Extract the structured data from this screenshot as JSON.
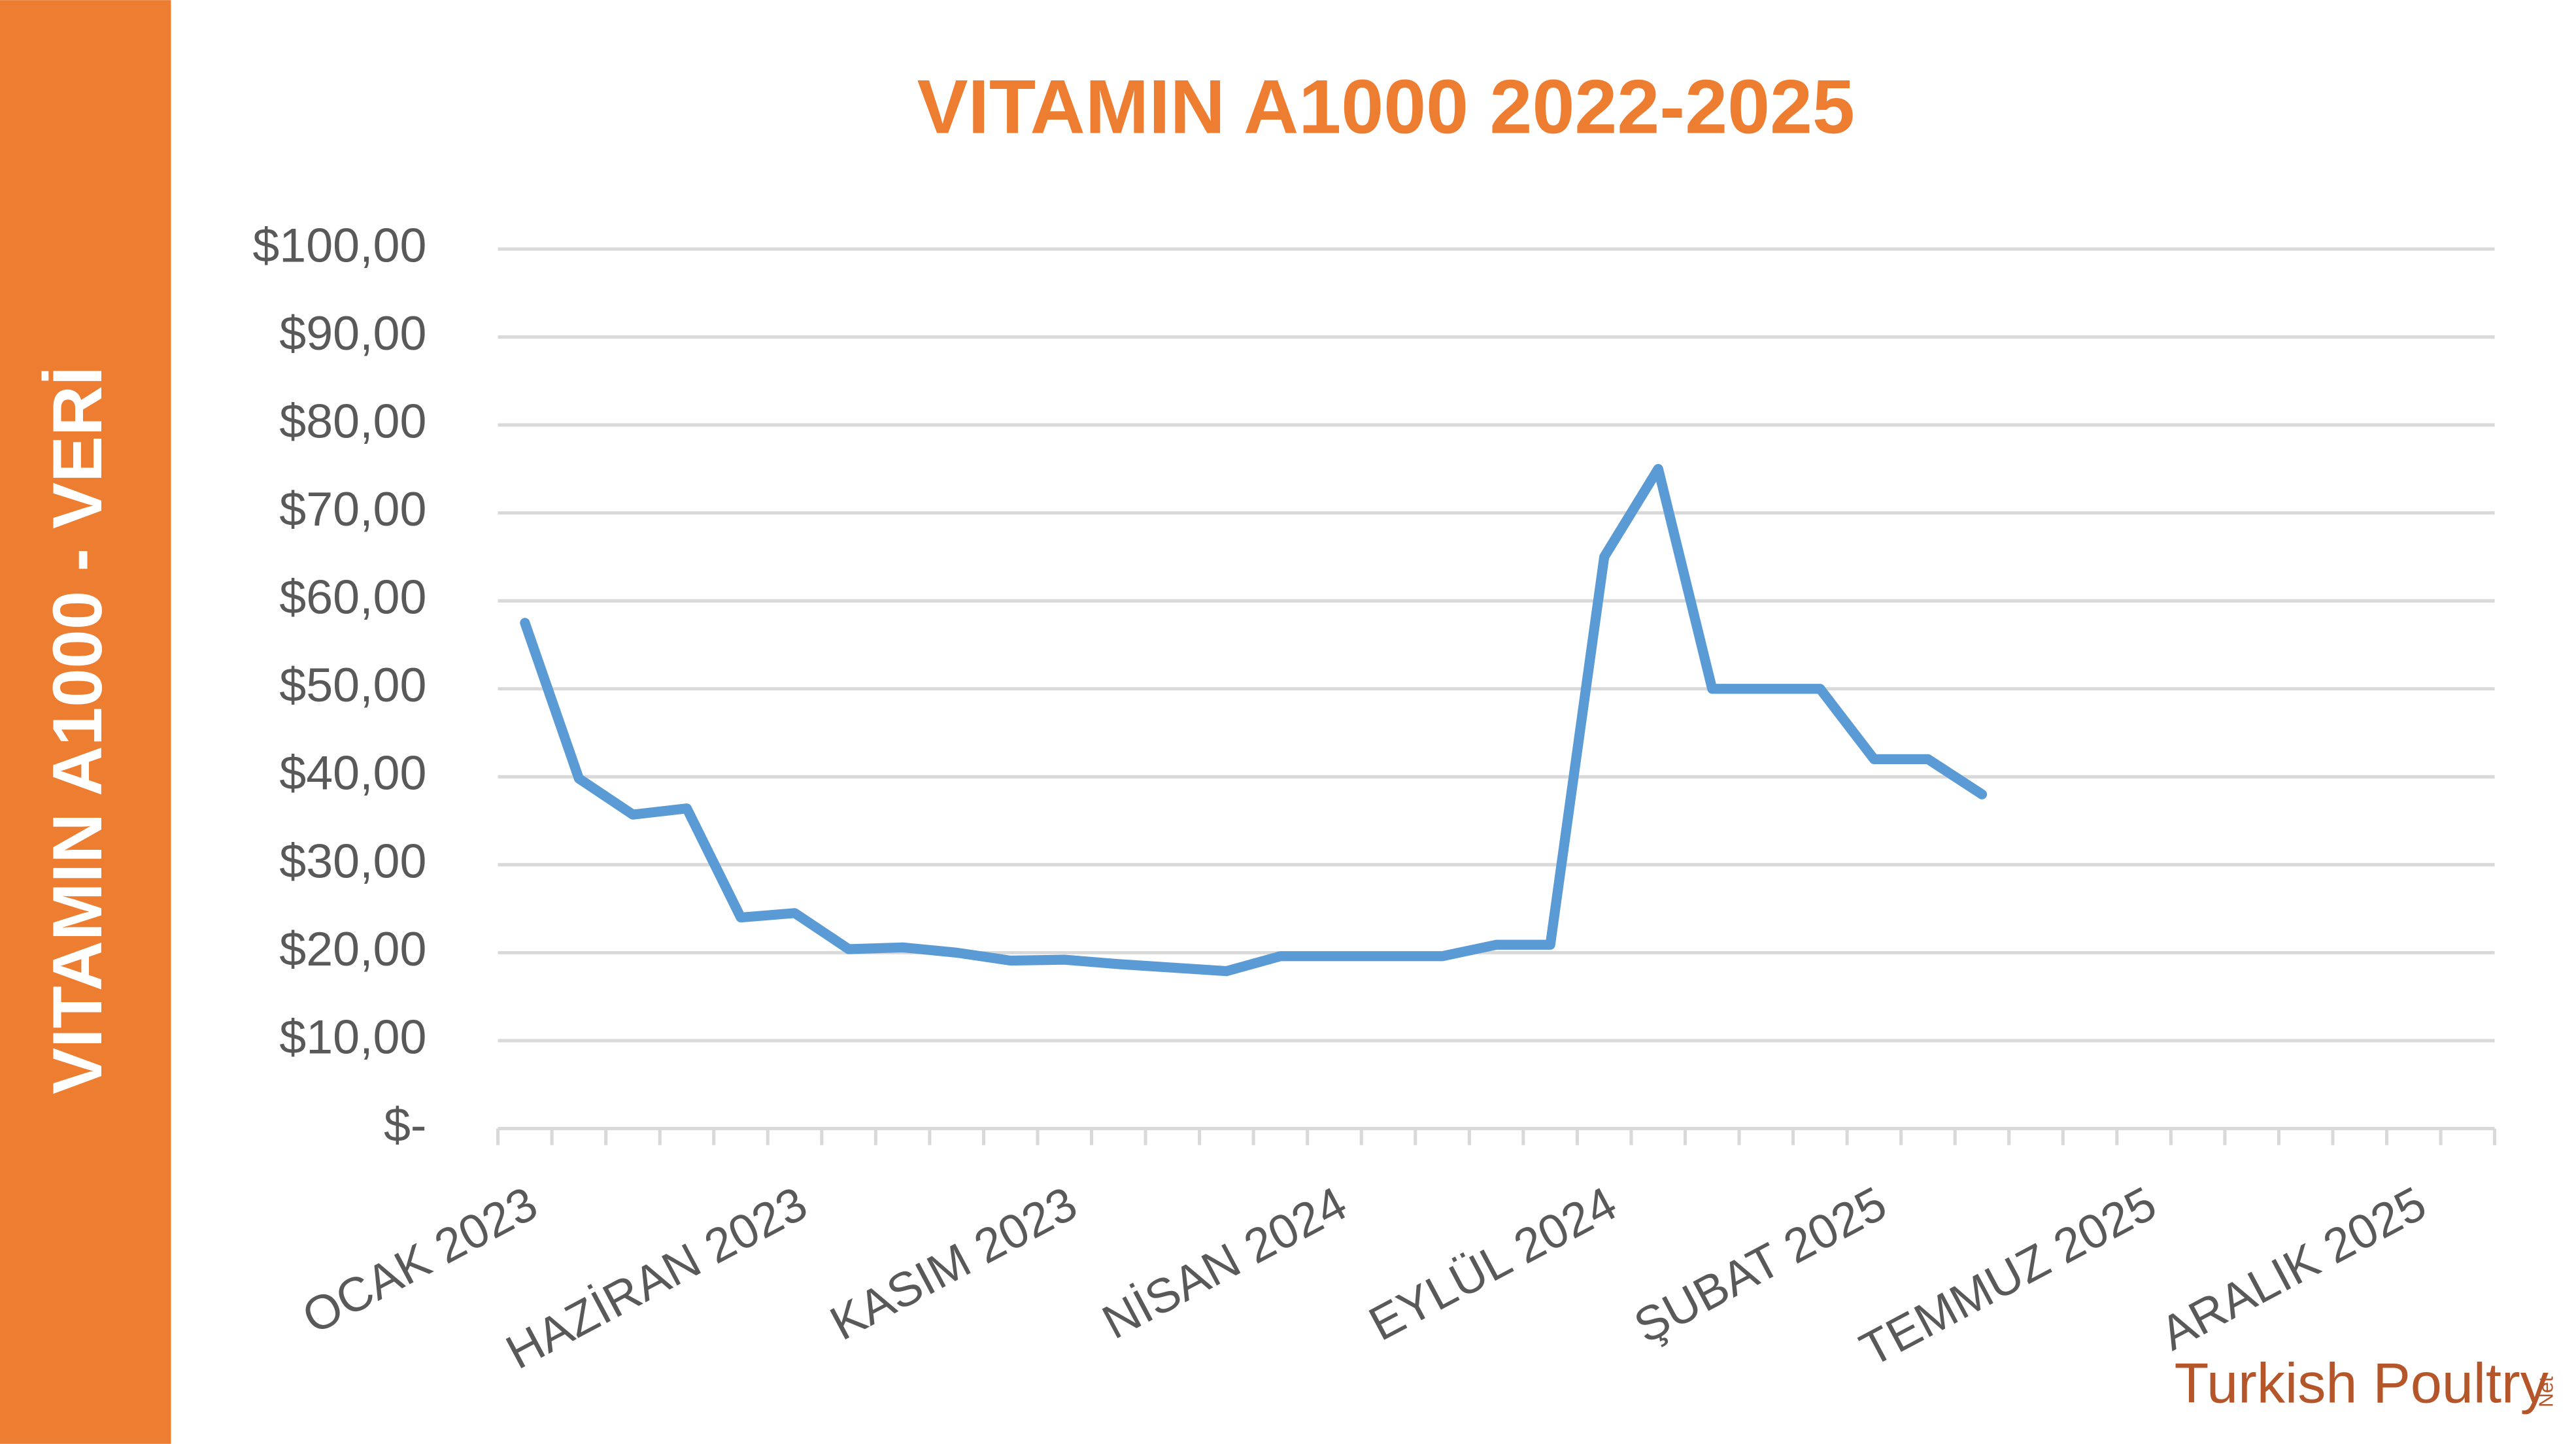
{
  "chart_data": {
    "type": "line",
    "title": "VITAMIN A1000 2022-2025",
    "side_label": "VITAMIN A1000 - VERİ",
    "logo": {
      "brand": "Turkish Poultry",
      "suffix": "Net"
    },
    "categories": [
      "OCAK 2023",
      null,
      null,
      null,
      null,
      "HAZİRAN 2023",
      null,
      null,
      null,
      null,
      "KASIM 2023",
      null,
      null,
      null,
      null,
      "NİSAN 2024",
      null,
      null,
      null,
      null,
      "EYLÜL 2024",
      null,
      null,
      null,
      null,
      "ŞUBAT 2025",
      null,
      null,
      null,
      null,
      "TEMMUZ 2025",
      null,
      null,
      null,
      null,
      "ARALIK 2025",
      null
    ],
    "series": [
      {
        "name": "VITAMIN A1000",
        "color": "#5b9bd5",
        "values": [
          57.5,
          39.8,
          35.7,
          36.4,
          24.0,
          24.5,
          20.4,
          20.6,
          20.0,
          19.1,
          19.2,
          18.7,
          18.3,
          17.9,
          19.6,
          19.6,
          19.6,
          19.6,
          20.9,
          20.9,
          65,
          75,
          50,
          50,
          50,
          42,
          42,
          38,
          null,
          null,
          null,
          null,
          null,
          null,
          null,
          null,
          null
        ]
      }
    ],
    "ylim": [
      0,
      100
    ],
    "yticks": [
      {
        "value": 0,
        "label": "$-"
      },
      {
        "value": 10,
        "label": "$10,00"
      },
      {
        "value": 20,
        "label": "$20,00"
      },
      {
        "value": 30,
        "label": "$30,00"
      },
      {
        "value": 40,
        "label": "$40,00"
      },
      {
        "value": 50,
        "label": "$50,00"
      },
      {
        "value": 60,
        "label": "$60,00"
      },
      {
        "value": 70,
        "label": "$70,00"
      },
      {
        "value": 80,
        "label": "$80,00"
      },
      {
        "value": 90,
        "label": "$90,00"
      },
      {
        "value": 100,
        "label": "$100,00"
      }
    ],
    "grid": true
  }
}
